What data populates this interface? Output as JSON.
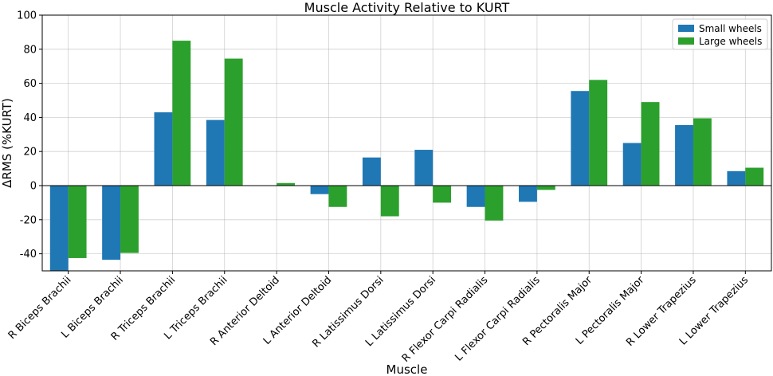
{
  "chart_data": {
    "type": "bar",
    "title": "Muscle Activity Relative to KURT",
    "xlabel": "Muscle",
    "ylabel": "ΔRMS (%KURT)",
    "ylim": [
      -50,
      100
    ],
    "yticks": [
      -40,
      -20,
      0,
      20,
      40,
      60,
      80,
      100
    ],
    "grid": true,
    "legend_position": "top-right",
    "categories": [
      "R Biceps Brachii",
      "L Biceps Brachii",
      "R Triceps Brachii",
      "L Triceps Brachii",
      "R Anterior Deltoid",
      "L Anterior Deltoid",
      "R Latissimus Dorsi",
      "L Latissimus Dorsi",
      "R Flexor Carpi Radialis",
      "L Flexor Carpi Radialis",
      "R Pectoralis Major",
      "L Pectoralis Major",
      "R Lower Trapezius",
      "L Lower Trapezius"
    ],
    "series": [
      {
        "name": "Small wheels",
        "color": "#1f77b4",
        "values": [
          -50,
          -43.5,
          43,
          38.5,
          0,
          -5,
          16.5,
          21,
          -12.5,
          -9.5,
          55.5,
          25,
          35.5,
          8.5
        ]
      },
      {
        "name": "Large wheels",
        "color": "#2ca02c",
        "values": [
          -42.5,
          -39.5,
          85,
          74.5,
          1.5,
          -12.5,
          -18,
          -10,
          -20.5,
          -2.5,
          62,
          49,
          39.5,
          10.5
        ]
      }
    ]
  }
}
